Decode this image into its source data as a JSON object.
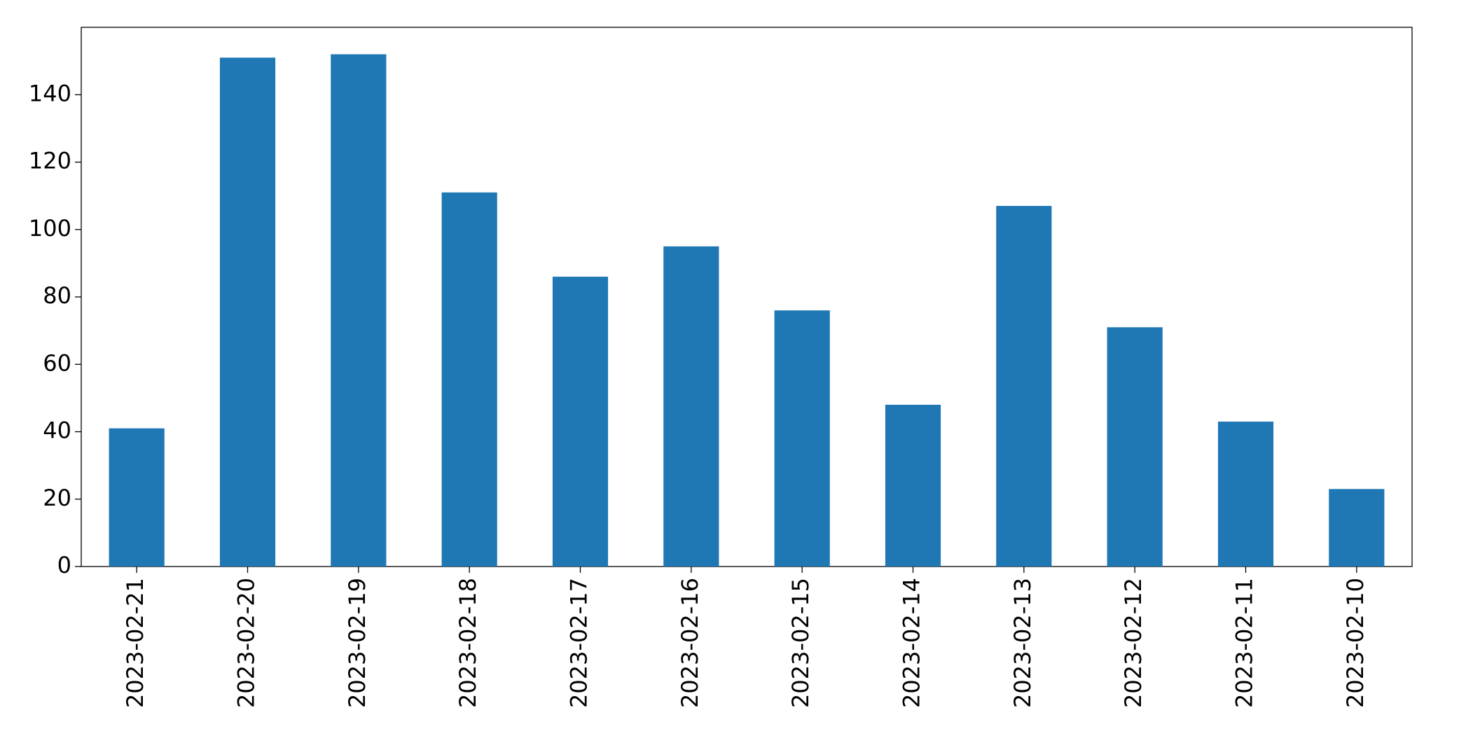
{
  "chart_data": {
    "type": "bar",
    "categories": [
      "2023-02-21",
      "2023-02-20",
      "2023-02-19",
      "2023-02-18",
      "2023-02-17",
      "2023-02-16",
      "2023-02-15",
      "2023-02-14",
      "2023-02-13",
      "2023-02-12",
      "2023-02-11",
      "2023-02-10"
    ],
    "values": [
      41,
      151,
      152,
      111,
      86,
      95,
      76,
      48,
      107,
      71,
      43,
      23
    ],
    "color": "#1f77b4",
    "ylim": [
      0,
      160
    ],
    "yticks": [
      0,
      20,
      40,
      60,
      80,
      100,
      120,
      140
    ],
    "grid": false
  }
}
